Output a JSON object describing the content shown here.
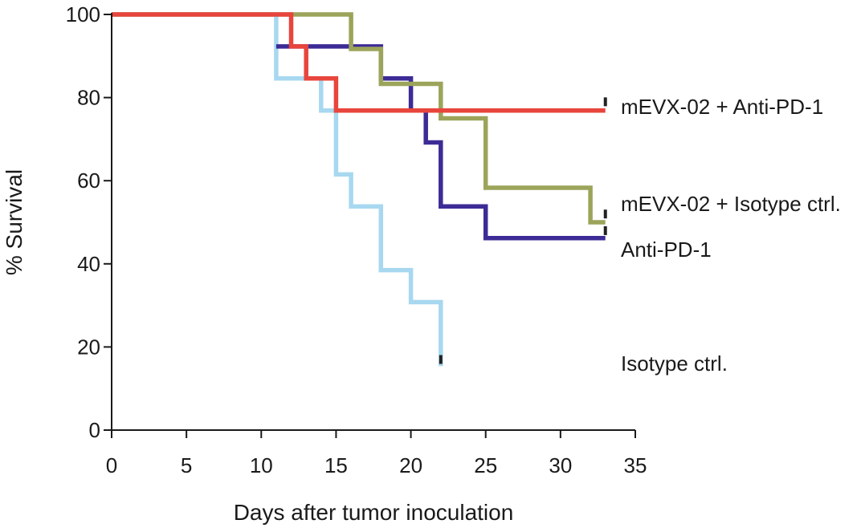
{
  "chart_data": {
    "type": "line",
    "step": true,
    "title": "",
    "xlabel": "Days after tumor inoculation",
    "ylabel": "% Survival",
    "xlim": [
      0,
      35
    ],
    "ylim": [
      0,
      100
    ],
    "xticks": [
      0,
      5,
      10,
      15,
      20,
      25,
      30,
      35
    ],
    "yticks": [
      0,
      20,
      40,
      60,
      80,
      100
    ],
    "grid": false,
    "legend": "direct labels at right end of each curve",
    "series": [
      {
        "name": "Isotype ctrl.",
        "color": "#a8d8f0",
        "points": [
          [
            0,
            100
          ],
          [
            11,
            100
          ],
          [
            11,
            84.6
          ],
          [
            14,
            84.6
          ],
          [
            14,
            76.9
          ],
          [
            15,
            76.9
          ],
          [
            15,
            61.5
          ],
          [
            16,
            61.5
          ],
          [
            16,
            53.8
          ],
          [
            18,
            53.8
          ],
          [
            18,
            38.5
          ],
          [
            20,
            38.5
          ],
          [
            20,
            30.8
          ],
          [
            22,
            30.8
          ],
          [
            22,
            15.4
          ]
        ],
        "censor": [
          22,
          16.5
        ]
      },
      {
        "name": "Anti-PD-1",
        "color": "#3d2b96",
        "points": [
          [
            11,
            92.3
          ],
          [
            18,
            92.3
          ],
          [
            18,
            84.6
          ],
          [
            20,
            84.6
          ],
          [
            20,
            76.9
          ],
          [
            21,
            76.9
          ],
          [
            21,
            69.2
          ],
          [
            22,
            69.2
          ],
          [
            22,
            53.8
          ],
          [
            25,
            53.8
          ],
          [
            25,
            46.2
          ],
          [
            33,
            46.2
          ]
        ],
        "censor": [
          33,
          47.5
        ]
      },
      {
        "name": "mEVX-02 + Isotype ctrl.",
        "color": "#9ca45a",
        "points": [
          [
            0,
            100
          ],
          [
            16,
            100
          ],
          [
            16,
            91.7
          ],
          [
            18,
            91.7
          ],
          [
            18,
            83.3
          ],
          [
            22,
            83.3
          ],
          [
            22,
            75.0
          ],
          [
            25,
            75.0
          ],
          [
            25,
            58.3
          ],
          [
            32,
            58.3
          ],
          [
            32,
            50.0
          ],
          [
            33,
            50.0
          ]
        ],
        "censor": [
          33,
          51.5
        ]
      },
      {
        "name": "mEVX-02 + Anti-PD-1",
        "color": "#e8453c",
        "points": [
          [
            0,
            100
          ],
          [
            12,
            100
          ],
          [
            12,
            92.3
          ],
          [
            13,
            92.3
          ],
          [
            13,
            84.6
          ],
          [
            15,
            84.6
          ],
          [
            15,
            76.9
          ],
          [
            33,
            76.9
          ]
        ],
        "censor": [
          33,
          78.5
        ]
      }
    ],
    "labels": [
      {
        "series": "mEVX-02 + Anti-PD-1",
        "text": "mEVX-02 + Anti-PD-1"
      },
      {
        "series": "mEVX-02 + Isotype ctrl.",
        "text": "mEVX-02 + Isotype ctrl."
      },
      {
        "series": "Anti-PD-1",
        "text": "Anti-PD-1"
      },
      {
        "series": "Isotype ctrl.",
        "text": "Isotype ctrl."
      }
    ]
  }
}
